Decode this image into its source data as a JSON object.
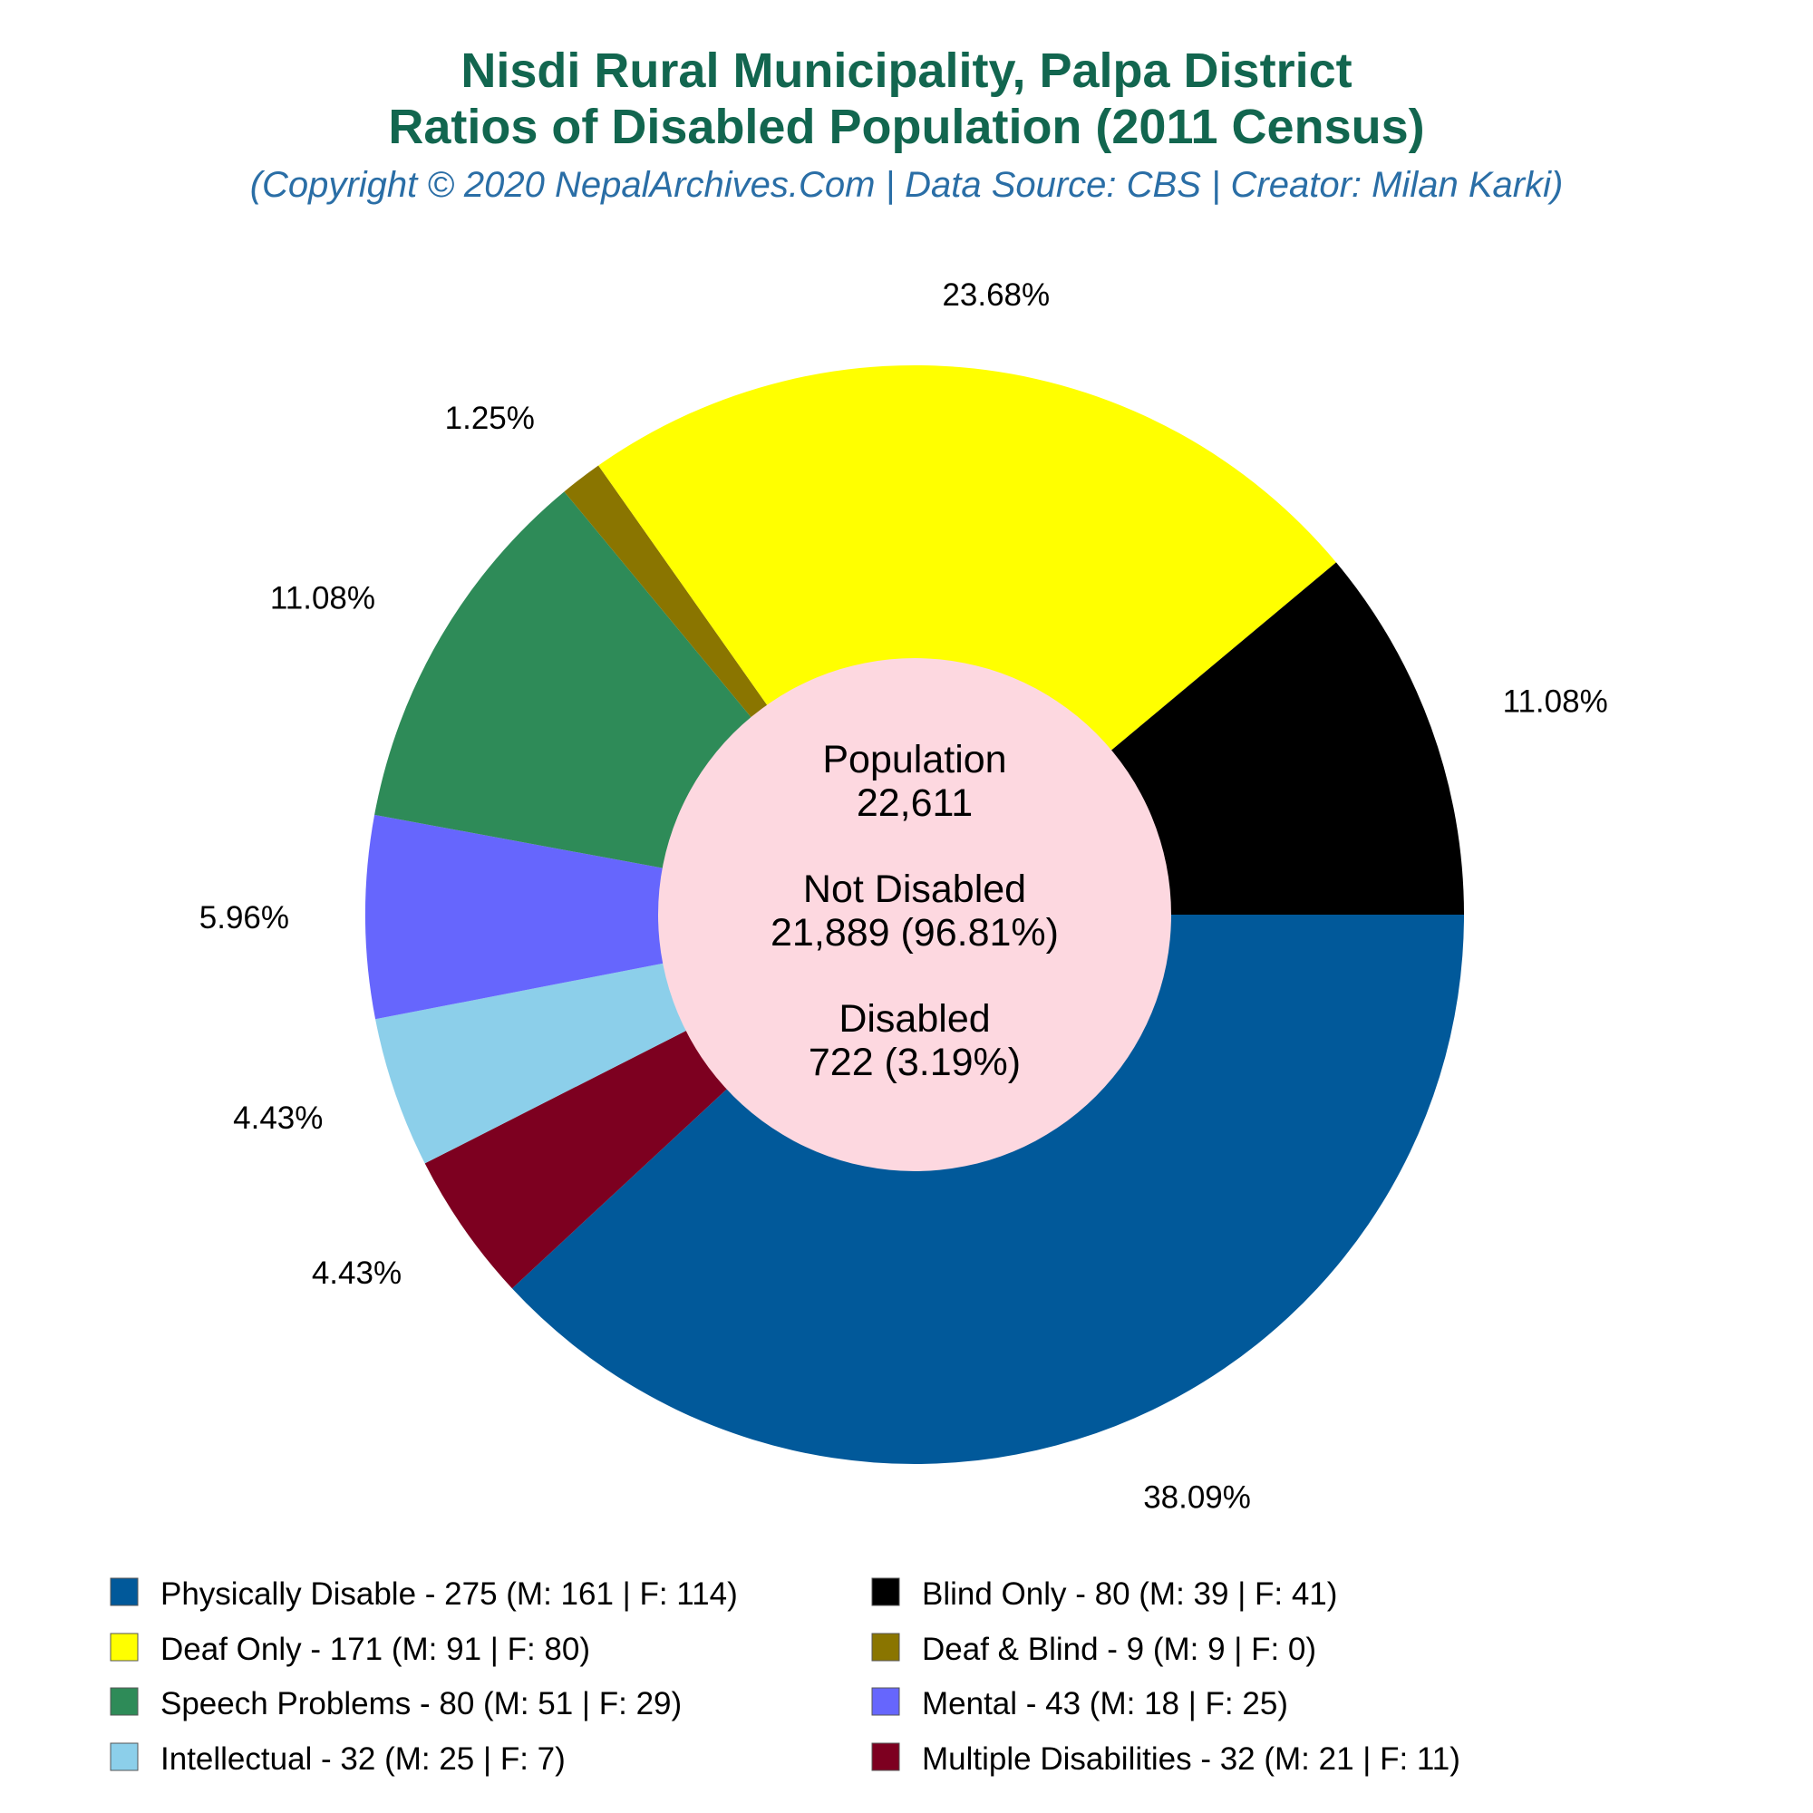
{
  "chart_data": {
    "type": "pie",
    "title": "Nisdi Rural Municipality, Palpa District",
    "title2": "Ratios of Disabled Population (2011 Census)",
    "subtitle": "(Copyright © 2020 NepalArchives.Com | Data Source: CBS | Creator: Milan Karki)",
    "center": {
      "population_label": "Population",
      "population_value": "22,611",
      "not_disabled_label": "Not Disabled",
      "not_disabled_value": "21,889 (96.81%)",
      "disabled_label": "Disabled",
      "disabled_value": "722 (3.19%)"
    },
    "center_color": "#fdd8e0",
    "slices": [
      {
        "name": "Physically Disable",
        "value": 275,
        "percent_label": "38.09%",
        "legend": "Physically Disable - 275 (M: 161 | F: 114)",
        "color": "#01599a"
      },
      {
        "name": "Multiple Disabilities",
        "value": 32,
        "percent_label": "4.43%",
        "legend": "Multiple Disabilities - 32 (M: 21 | F: 11)",
        "color": "#7d0020"
      },
      {
        "name": "Intellectual",
        "value": 32,
        "percent_label": "4.43%",
        "legend": "Intellectual - 32 (M: 25 | F: 7)",
        "color": "#8ccfea"
      },
      {
        "name": "Mental",
        "value": 43,
        "percent_label": "5.96%",
        "legend": "Mental - 43 (M: 18 | F: 25)",
        "color": "#6666fd"
      },
      {
        "name": "Speech Problems",
        "value": 80,
        "percent_label": "11.08%",
        "legend": "Speech Problems - 80 (M: 51 | F: 29)",
        "color": "#2e8b58"
      },
      {
        "name": "Deaf & Blind",
        "value": 9,
        "percent_label": "1.25%",
        "legend": "Deaf & Blind - 9 (M: 9 | F: 0)",
        "color": "#8a7500"
      },
      {
        "name": "Deaf Only",
        "value": 171,
        "percent_label": "23.68%",
        "legend": "Deaf Only - 171 (M: 91 | F: 80)",
        "color": "#ffff00"
      },
      {
        "name": "Blind Only",
        "value": 80,
        "percent_label": "11.08%",
        "legend": "Blind Only - 80 (M: 39 | F: 41)",
        "color": "#000000"
      }
    ],
    "legend_order": [
      "Physically Disable",
      "Blind Only",
      "Deaf Only",
      "Deaf & Blind",
      "Speech Problems",
      "Mental",
      "Intellectual",
      "Multiple Disabilities"
    ],
    "legend_placement": "bottom"
  }
}
